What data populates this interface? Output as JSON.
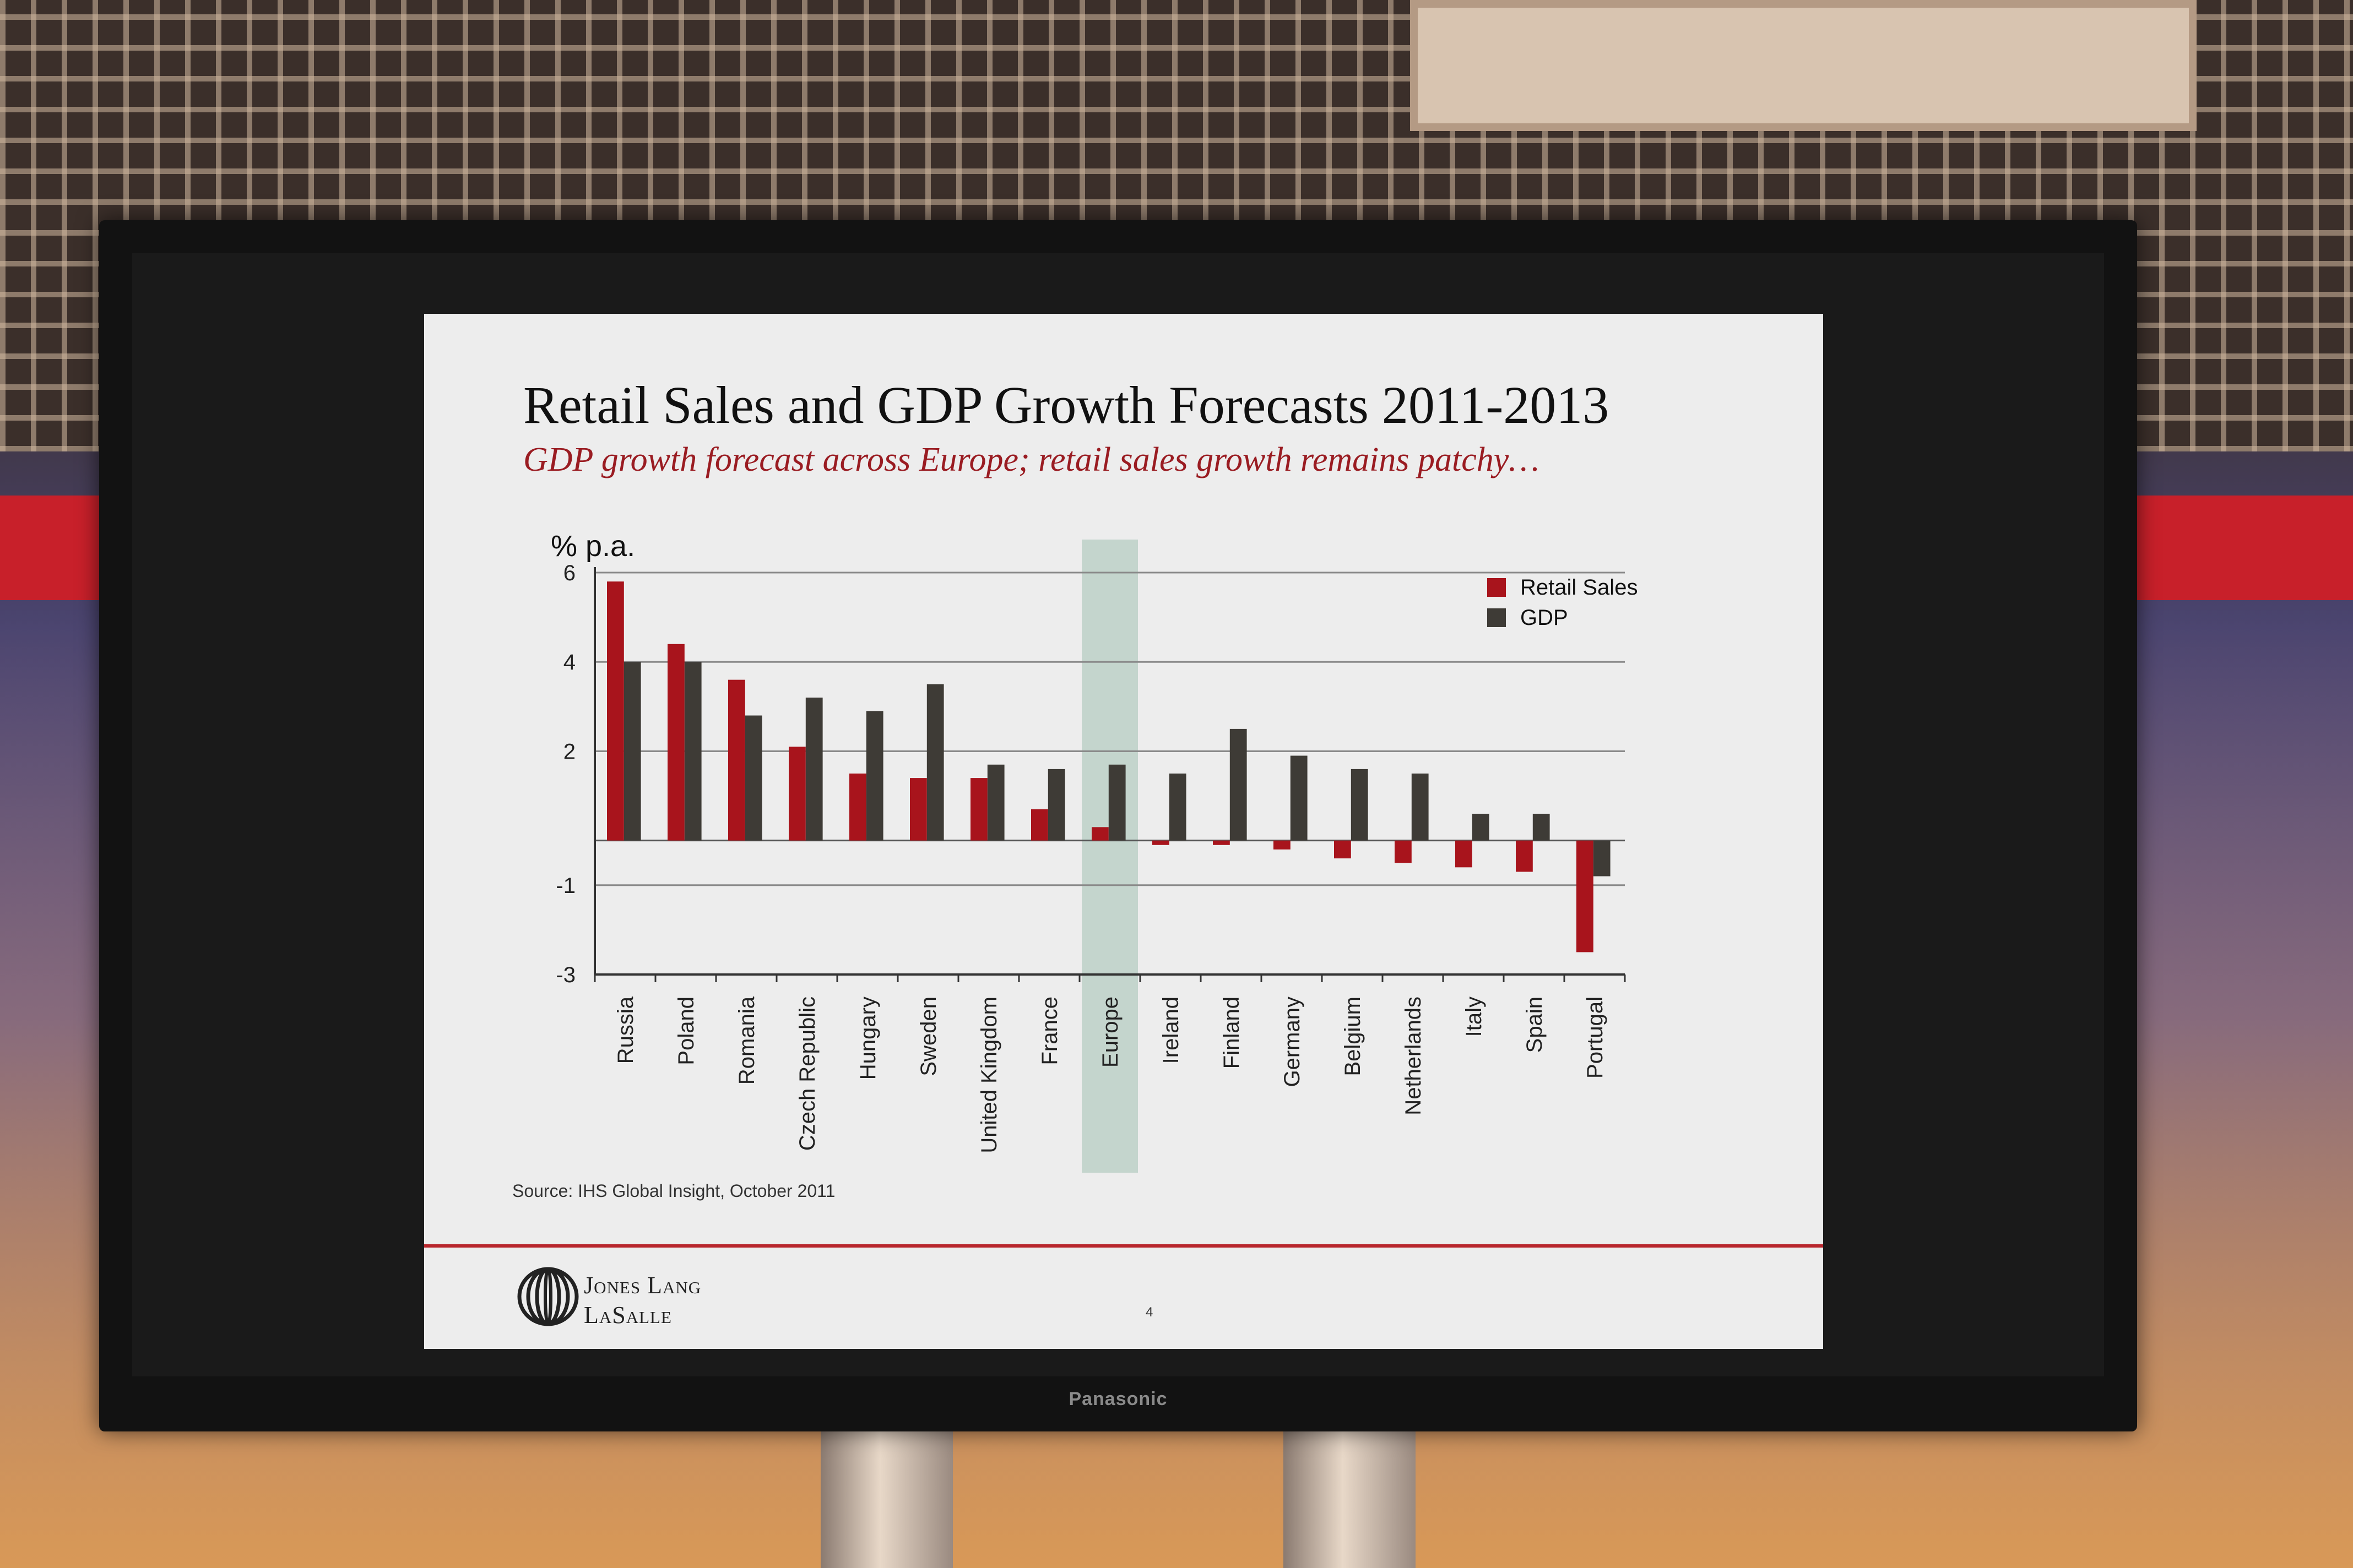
{
  "slide": {
    "title": "Retail Sales and GDP Growth Forecasts 2011-2013",
    "subtitle": "GDP growth forecast across Europe; retail sales growth remains patchy…",
    "source": "Source: IHS Global Insight, October 2011",
    "company": {
      "line1": "Jones Lang",
      "line2": "LaSalle"
    },
    "page_number": "4"
  },
  "display": {
    "brand": "Panasonic"
  },
  "colors": {
    "retail": "#a8141c",
    "gdp": "#3e3b36",
    "highlight": "#a9c5b8",
    "accent_line": "#b8262c"
  },
  "chart_data": {
    "type": "bar",
    "title": "Retail Sales and GDP Growth Forecasts 2011-2013",
    "ylabel": "% p.a.",
    "xlabel": "",
    "ylim": [
      -3,
      6
    ],
    "yticks": [
      6,
      4,
      2,
      -1,
      -3
    ],
    "grid": true,
    "legend_position": "top-right",
    "highlight_category": "Europe",
    "categories": [
      "Russia",
      "Poland",
      "Romania",
      "Czech Republic",
      "Hungary",
      "Sweden",
      "United Kingdom",
      "France",
      "Europe",
      "Ireland",
      "Finland",
      "Germany",
      "Belgium",
      "Netherlands",
      "Italy",
      "Spain",
      "Portugal"
    ],
    "series": [
      {
        "name": "Retail Sales",
        "values": [
          5.8,
          4.4,
          3.6,
          2.1,
          1.5,
          1.4,
          1.4,
          0.7,
          0.3,
          -0.1,
          -0.1,
          -0.2,
          -0.4,
          -0.5,
          -0.6,
          -0.7,
          -2.5
        ]
      },
      {
        "name": "GDP",
        "values": [
          4.0,
          4.0,
          2.8,
          3.2,
          2.9,
          3.5,
          1.7,
          1.6,
          1.7,
          1.5,
          2.5,
          1.9,
          1.6,
          1.5,
          0.6,
          0.6,
          -0.8
        ]
      }
    ]
  }
}
